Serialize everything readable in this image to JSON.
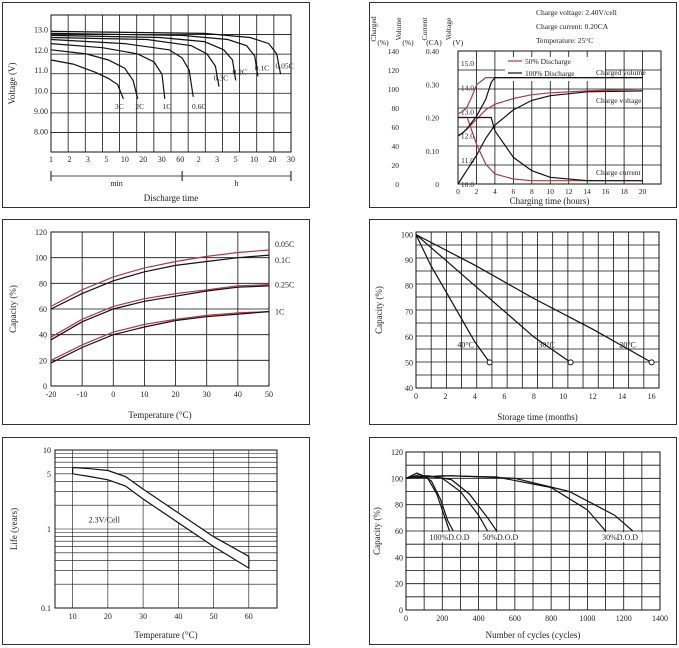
{
  "chart_data": [
    {
      "id": "discharge",
      "type": "line",
      "xlabel": "Discharge time",
      "ylabel": "Voltage (V)",
      "y_ticks": [
        "13.0",
        "12.0",
        "11.0",
        "10.0",
        "9.00",
        "8.00"
      ],
      "x_ticks": [
        "1",
        "2",
        "3",
        "5",
        "10",
        "20",
        "30",
        "60",
        "2",
        "3",
        "5",
        "10",
        "20",
        "30"
      ],
      "unit_min": "min",
      "unit_h": "h",
      "log_x": true,
      "series": [
        {
          "name": "3C",
          "x": [
            1,
            2,
            4,
            6,
            8,
            9.6
          ],
          "y": [
            11.5,
            11.3,
            10.9,
            10.6,
            10.3,
            9.6
          ]
        },
        {
          "name": "2C",
          "x": [
            1,
            3,
            6,
            10,
            13,
            15
          ],
          "y": [
            12.0,
            11.8,
            11.5,
            11.1,
            10.5,
            9.6
          ]
        },
        {
          "name": "1C",
          "x": [
            1,
            5,
            15,
            25,
            32,
            35
          ],
          "y": [
            12.3,
            12.1,
            11.8,
            11.4,
            10.8,
            9.6
          ]
        },
        {
          "name": "0.6C",
          "x": [
            1,
            10,
            40,
            60,
            75,
            85
          ],
          "y": [
            12.5,
            12.3,
            12.0,
            11.6,
            11.0,
            9.7
          ]
        },
        {
          "name": "0.3C",
          "x": [
            1,
            20,
            80,
            130,
            170,
            190
          ],
          "y": [
            12.6,
            12.5,
            12.2,
            11.8,
            11.2,
            10.2
          ]
        },
        {
          "name": "0.2C",
          "x": [
            1,
            30,
            120,
            220,
            290,
            320
          ],
          "y": [
            12.7,
            12.6,
            12.4,
            12.0,
            11.5,
            10.5
          ]
        },
        {
          "name": "0.1C",
          "x": [
            1,
            60,
            250,
            450,
            580,
            640
          ],
          "y": [
            12.8,
            12.7,
            12.5,
            12.2,
            11.7,
            10.7
          ]
        },
        {
          "name": "0.05C",
          "x": [
            1,
            120,
            500,
            900,
            1150,
            1300
          ],
          "y": [
            12.9,
            12.8,
            12.6,
            12.3,
            11.8,
            10.8
          ]
        }
      ]
    },
    {
      "id": "charging",
      "type": "line",
      "xlabel": "Charging time (hours)",
      "axis_heads": [
        [
          "Charged",
          "(%)"
        ],
        [
          "Volume",
          "(%)"
        ],
        [
          "Current",
          "(CA)"
        ],
        [
          "Voltage",
          "(V)"
        ]
      ],
      "info": [
        "Charge voltage: 2.40V/cell",
        "Charge current: 0.20CA",
        "Temperature: 25°C"
      ],
      "legend": [
        "50% Discharge",
        "100% Discharge"
      ],
      "annotations": [
        "Charged volume",
        "Charge voltage",
        "Charge current"
      ],
      "x_ticks": [
        "0",
        "2",
        "4",
        "6",
        "8",
        "10",
        "12",
        "14",
        "16",
        "18",
        "20"
      ],
      "ticks_pct": [
        "140",
        "120",
        "100",
        "80",
        "60",
        "40",
        "20",
        "0"
      ],
      "ticks_ca": [
        "0.40",
        "0.30",
        "0.20",
        "0.10",
        "0"
      ],
      "ticks_v": [
        "15.0",
        "14.0",
        "13.0",
        "12.0",
        "11.0",
        "10.0"
      ],
      "series": [
        {
          "name": "50% Discharge",
          "color": "#b03a48",
          "kind": "volume",
          "x": [
            0,
            1,
            2,
            3,
            4,
            6,
            8,
            10,
            14,
            20
          ],
          "y": [
            50,
            58,
            68,
            78,
            84,
            90,
            94,
            96,
            98,
            100
          ]
        },
        {
          "name": "100% Discharge",
          "color": "#111",
          "kind": "volume",
          "x": [
            0,
            1,
            2,
            3,
            4,
            6,
            8,
            10,
            14,
            20
          ],
          "y": [
            0,
            15,
            30,
            48,
            62,
            78,
            88,
            93,
            97,
            98
          ]
        },
        {
          "name": "50% Discharge",
          "color": "#b03a48",
          "kind": "current",
          "x": [
            0,
            1,
            2,
            3,
            4,
            6,
            8,
            10,
            14,
            20
          ],
          "y": [
            0.2,
            0.2,
            0.12,
            0.06,
            0.03,
            0.015,
            0.01,
            0.01,
            0.01,
            0.01
          ]
        },
        {
          "name": "100% Discharge",
          "color": "#111",
          "kind": "current",
          "x": [
            0,
            1,
            2,
            3,
            3.6,
            4,
            6,
            8,
            10,
            14,
            20
          ],
          "y": [
            0.2,
            0.2,
            0.2,
            0.2,
            0.2,
            0.16,
            0.08,
            0.04,
            0.02,
            0.01,
            0.01
          ]
        },
        {
          "name": "50% Discharge",
          "color": "#b03a48",
          "kind": "voltage",
          "x": [
            0,
            0.5,
            1,
            1.5,
            2,
            3,
            4,
            6,
            10,
            20
          ],
          "y": [
            12.9,
            13.0,
            13.2,
            13.6,
            14.1,
            14.4,
            14.4,
            14.4,
            14.4,
            14.4
          ]
        },
        {
          "name": "100% Discharge",
          "color": "#111",
          "kind": "voltage",
          "x": [
            0,
            0.5,
            1,
            2,
            3,
            3.6,
            4,
            6,
            10,
            20
          ],
          "y": [
            12.0,
            12.1,
            12.3,
            12.8,
            13.5,
            14.2,
            14.4,
            14.4,
            14.4,
            14.4
          ]
        }
      ]
    },
    {
      "id": "temperature_capacity",
      "type": "line",
      "xlabel": "Temperature (°C)",
      "ylabel": "Capacity (%)",
      "x_ticks": [
        "-20",
        "-10",
        "0",
        "10",
        "20",
        "30",
        "40",
        "50"
      ],
      "y_ticks": [
        "120",
        "100",
        "80",
        "60",
        "40",
        "20",
        "0"
      ],
      "series": [
        {
          "name": "0.05C",
          "color": "#b03a48",
          "x": [
            -20,
            -10,
            0,
            10,
            20,
            30,
            40,
            50
          ],
          "y": [
            62,
            75,
            85,
            92,
            97,
            101,
            104,
            106
          ]
        },
        {
          "name": "0.1C",
          "color": "#111",
          "x": [
            -20,
            -10,
            0,
            10,
            20,
            30,
            40,
            50
          ],
          "y": [
            60,
            72,
            82,
            89,
            94,
            97,
            100,
            102
          ]
        },
        {
          "name": "0.25C",
          "color": "#b03a48",
          "x": [
            -20,
            -10,
            0,
            10,
            20,
            30,
            40,
            50
          ],
          "y": [
            38,
            52,
            62,
            68,
            72,
            75,
            78,
            79
          ]
        },
        {
          "name": "0.25C",
          "color": "#111",
          "x": [
            -20,
            -10,
            0,
            10,
            20,
            30,
            40,
            50
          ],
          "y": [
            36,
            50,
            60,
            66,
            70,
            74,
            77,
            78
          ]
        },
        {
          "name": "1C",
          "color": "#b03a48",
          "x": [
            -20,
            -10,
            0,
            10,
            20,
            30,
            40,
            50
          ],
          "y": [
            20,
            32,
            42,
            48,
            52,
            55,
            57,
            58
          ]
        },
        {
          "name": "1C",
          "color": "#111",
          "x": [
            -20,
            -10,
            0,
            10,
            20,
            30,
            40,
            50
          ],
          "y": [
            18,
            30,
            40,
            46,
            51,
            54,
            56,
            58
          ]
        }
      ]
    },
    {
      "id": "storage",
      "type": "line",
      "xlabel": "Storage time (months)",
      "ylabel": "Capacity (%)",
      "x_ticks": [
        "0",
        "2",
        "4",
        "6",
        "8",
        "10",
        "12",
        "14",
        "16"
      ],
      "y_ticks": [
        "100",
        "90",
        "80",
        "70",
        "60",
        "50",
        "40"
      ],
      "series": [
        {
          "name": "40°C",
          "x": [
            0,
            1,
            2,
            3,
            4,
            5
          ],
          "y": [
            100,
            88,
            78,
            68,
            58,
            50
          ]
        },
        {
          "name": "30°C",
          "x": [
            0,
            2,
            4,
            6,
            8,
            10.5
          ],
          "y": [
            100,
            90,
            80,
            70,
            60,
            50
          ]
        },
        {
          "name": "20°C",
          "x": [
            0,
            4,
            8,
            12,
            16
          ],
          "y": [
            100,
            88,
            75,
            63,
            50
          ]
        }
      ]
    },
    {
      "id": "life",
      "type": "line",
      "xlabel": "Temperature (°C)",
      "ylabel": "Life (years)",
      "log_y": true,
      "annotation": "2.3V/Cell",
      "x_ticks": [
        "10",
        "20",
        "30",
        "40",
        "50",
        "60"
      ],
      "y_ticks": [
        "10",
        "5",
        "1",
        "0.1"
      ],
      "band_upper": {
        "x": [
          10,
          15,
          20,
          25,
          30,
          40,
          50,
          60
        ],
        "y": [
          6,
          5.8,
          5.5,
          4.6,
          3.2,
          1.6,
          0.8,
          0.45
        ]
      },
      "band_lower": {
        "x": [
          10,
          15,
          20,
          25,
          30,
          40,
          50,
          60
        ],
        "y": [
          5,
          4.6,
          4.2,
          3.5,
          2.4,
          1.2,
          0.6,
          0.32
        ]
      }
    },
    {
      "id": "cycles",
      "type": "line",
      "xlabel": "Number of cycles (cycles)",
      "ylabel": "Capacity (%)",
      "x_ticks": [
        "0",
        "200",
        "400",
        "600",
        "800",
        "1000",
        "1200",
        "1400"
      ],
      "y_ticks": [
        "120",
        "100",
        "80",
        "60",
        "40",
        "20",
        "0"
      ],
      "labels": [
        "100%D.O.D",
        "50%D.O.D",
        "30%D.O.D"
      ],
      "series": [
        {
          "name": "100%D.O.D",
          "x": [
            0,
            60,
            120,
            170,
            210,
            240
          ],
          "y": [
            100,
            104,
            100,
            88,
            72,
            60
          ]
        },
        {
          "name": "100%D.O.D",
          "x": [
            0,
            80,
            140,
            190,
            230,
            260
          ],
          "y": [
            100,
            103,
            98,
            84,
            68,
            60
          ]
        },
        {
          "name": "50%D.O.D",
          "x": [
            0,
            100,
            200,
            300,
            400,
            450
          ],
          "y": [
            100,
            102,
            100,
            90,
            72,
            60
          ]
        },
        {
          "name": "50%D.O.D",
          "x": [
            0,
            120,
            250,
            350,
            450,
            500
          ],
          "y": [
            100,
            102,
            99,
            88,
            70,
            60
          ]
        },
        {
          "name": "30%D.O.D",
          "x": [
            0,
            200,
            500,
            800,
            1000,
            1100
          ],
          "y": [
            100,
            102,
            101,
            93,
            76,
            60
          ]
        },
        {
          "name": "30%D.O.D",
          "x": [
            0,
            250,
            600,
            900,
            1150,
            1250
          ],
          "y": [
            100,
            102,
            100,
            90,
            72,
            60
          ]
        }
      ]
    }
  ]
}
